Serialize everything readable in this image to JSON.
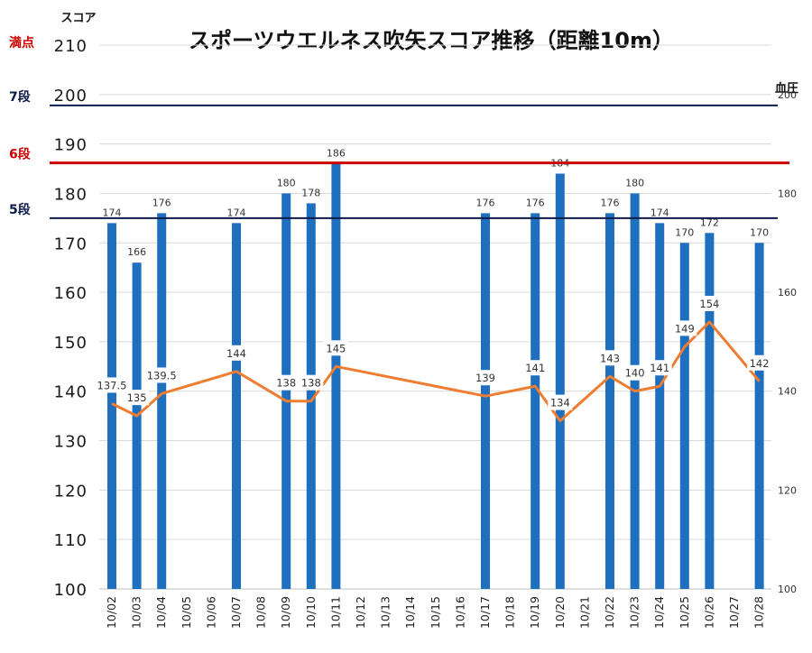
{
  "chart_data": {
    "type": "bar+line",
    "title": "スポーツウエルネス吹矢スコア推移（距離10m）",
    "y_left_label": "スコア",
    "y_right_label": "血圧",
    "y_left_range": [
      100,
      210
    ],
    "y_left_ticks": [
      100,
      110,
      120,
      130,
      140,
      150,
      160,
      170,
      180,
      190,
      200,
      210
    ],
    "y_right_range": [
      100,
      210
    ],
    "y_right_ticks": [
      100,
      120,
      140,
      160,
      180,
      200
    ],
    "grid": true,
    "categories": [
      "10/02",
      "10/03",
      "10/04",
      "10/05",
      "10/06",
      "10/07",
      "10/08",
      "10/09",
      "10/10",
      "10/11",
      "10/12",
      "10/13",
      "10/14",
      "10/15",
      "10/16",
      "10/17",
      "10/18",
      "10/19",
      "10/20",
      "10/21",
      "10/22",
      "10/23",
      "10/24",
      "10/25",
      "10/26",
      "10/27",
      "10/28"
    ],
    "series": [
      {
        "type": "bar",
        "axis": "left",
        "color": "#1f6fbf",
        "values": [
          174,
          166,
          176,
          null,
          null,
          174,
          null,
          180,
          178,
          186,
          null,
          null,
          null,
          null,
          null,
          176,
          null,
          176,
          184,
          null,
          176,
          180,
          174,
          170,
          172,
          null,
          170
        ],
        "labels": [
          "174",
          "166",
          "176",
          "",
          "",
          "174",
          "",
          "180",
          "178",
          "186",
          "",
          "",
          "",
          "",
          "",
          "176",
          "",
          "176",
          "184",
          "",
          "176",
          "180",
          "174",
          "170",
          "172",
          "",
          "170"
        ]
      },
      {
        "type": "line",
        "axis": "right",
        "color": "#ed7d31",
        "values": [
          137.5,
          135,
          139.5,
          null,
          null,
          144,
          null,
          138,
          138,
          145,
          null,
          null,
          null,
          null,
          null,
          139,
          null,
          141,
          134,
          null,
          143,
          140,
          141,
          149,
          154,
          null,
          142
        ],
        "labels": [
          "137.5",
          "135",
          "139.5",
          "",
          "",
          "144",
          "",
          "138",
          "138",
          "145",
          "",
          "",
          "",
          "",
          "",
          "139",
          "",
          "141",
          "134",
          "",
          "143",
          "140",
          "141",
          "149",
          "154",
          "",
          "142"
        ]
      }
    ],
    "reference_lines": [
      {
        "label": "満点",
        "value": 210,
        "color": "#cc0000"
      },
      {
        "label": "7段",
        "value": 200,
        "color": "#0d1b4a"
      },
      {
        "label": "6段",
        "value": 190,
        "color": "#cc0000"
      },
      {
        "label": "5段",
        "value": 175,
        "color": "#0d1b4a"
      }
    ]
  }
}
